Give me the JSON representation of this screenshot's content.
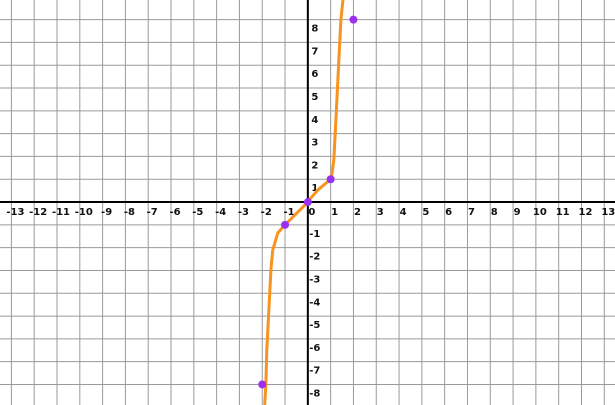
{
  "chart_data": {
    "type": "function-plot",
    "xlim": [
      -13.5,
      13.47
    ],
    "ylim": [
      -8.9,
      8.86
    ],
    "xticks": [
      -13,
      -12,
      -11,
      -10,
      -9,
      -8,
      -7,
      -6,
      -5,
      -4,
      -3,
      -2,
      -1,
      0,
      1,
      2,
      3,
      4,
      5,
      6,
      7,
      8,
      9,
      10,
      11,
      12,
      13
    ],
    "yticks": [
      -8,
      -7,
      -6,
      -5,
      -4,
      -3,
      -2,
      -1,
      1,
      2,
      3,
      4,
      5,
      6,
      7,
      8
    ],
    "grid": true,
    "series": [
      {
        "type": "line",
        "color": "#f7931e",
        "x": [
          -1.89,
          -1.84,
          -1.8,
          -1.71,
          -1.62,
          -1.54,
          -1.32,
          -1,
          -0.79,
          -0.35,
          0,
          0.09,
          0.44,
          0.75,
          1,
          1.05,
          1.14,
          1.23,
          1.36,
          1.45,
          1.54
        ],
        "values": [
          -8.86,
          -8,
          -6.49,
          -4.74,
          -2.98,
          -2.11,
          -1.36,
          -1,
          -0.79,
          -0.35,
          0,
          0.13,
          0.53,
          0.79,
          1,
          1.18,
          1.84,
          3.6,
          6.23,
          8,
          8.86
        ]
      },
      {
        "type": "scatter",
        "color": "#9b30f0",
        "x": [
          -2,
          -1,
          0,
          1,
          2
        ],
        "values": [
          -8,
          -1,
          0,
          1,
          8
        ]
      }
    ]
  }
}
